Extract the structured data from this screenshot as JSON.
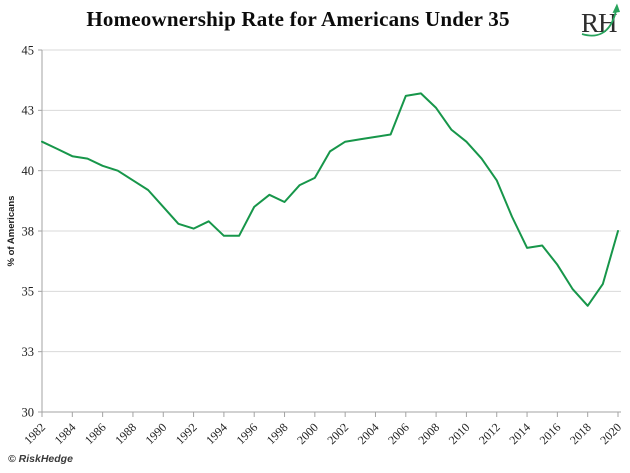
{
  "header": {
    "title": "Homeownership Rate for Americans Under 35",
    "logo_text": "RH"
  },
  "footer": {
    "copyright": "© RiskHedge"
  },
  "chart_data": {
    "type": "line",
    "title": "Homeownership Rate for Americans Under 35",
    "xlabel": "",
    "ylabel": "% of Americans",
    "ylim": [
      30,
      45
    ],
    "grid": "horizontal",
    "legend": "none",
    "years": [
      1982,
      1983,
      1984,
      1985,
      1986,
      1987,
      1988,
      1989,
      1990,
      1991,
      1992,
      1993,
      1994,
      1995,
      1996,
      1997,
      1998,
      1999,
      2000,
      2001,
      2002,
      2003,
      2004,
      2005,
      2006,
      2007,
      2008,
      2009,
      2010,
      2011,
      2012,
      2013,
      2014,
      2015,
      2016,
      2017,
      2018,
      2019,
      2020
    ],
    "values": [
      41.2,
      40.9,
      40.6,
      40.5,
      40.2,
      40.0,
      39.6,
      39.2,
      38.5,
      37.8,
      37.6,
      37.9,
      37.3,
      37.3,
      38.5,
      39.0,
      38.7,
      39.4,
      39.7,
      40.8,
      41.2,
      41.3,
      41.4,
      41.5,
      43.1,
      43.2,
      42.6,
      41.7,
      41.2,
      40.5,
      39.6,
      38.1,
      36.8,
      36.9,
      36.1,
      35.1,
      34.4,
      35.3,
      37.5
    ],
    "y_ticks": [
      {
        "value": 45,
        "label": "45"
      },
      {
        "value": 42.5,
        "label": "43"
      },
      {
        "value": 40,
        "label": "40"
      },
      {
        "value": 37.5,
        "label": "38"
      },
      {
        "value": 35,
        "label": "35"
      },
      {
        "value": 32.5,
        "label": "33"
      },
      {
        "value": 30,
        "label": "30"
      }
    ],
    "x_ticks": [
      1982,
      1984,
      1986,
      1988,
      1990,
      1992,
      1994,
      1996,
      1998,
      2000,
      2002,
      2004,
      2006,
      2008,
      2010,
      2012,
      2014,
      2016,
      2018,
      2020
    ],
    "colors": {
      "line": "#17964a",
      "logo_arrow": "#27a35c",
      "grid": "#d9d9d9",
      "axis": "#a3a3a3",
      "tick_text": "#1f1f1f"
    }
  }
}
